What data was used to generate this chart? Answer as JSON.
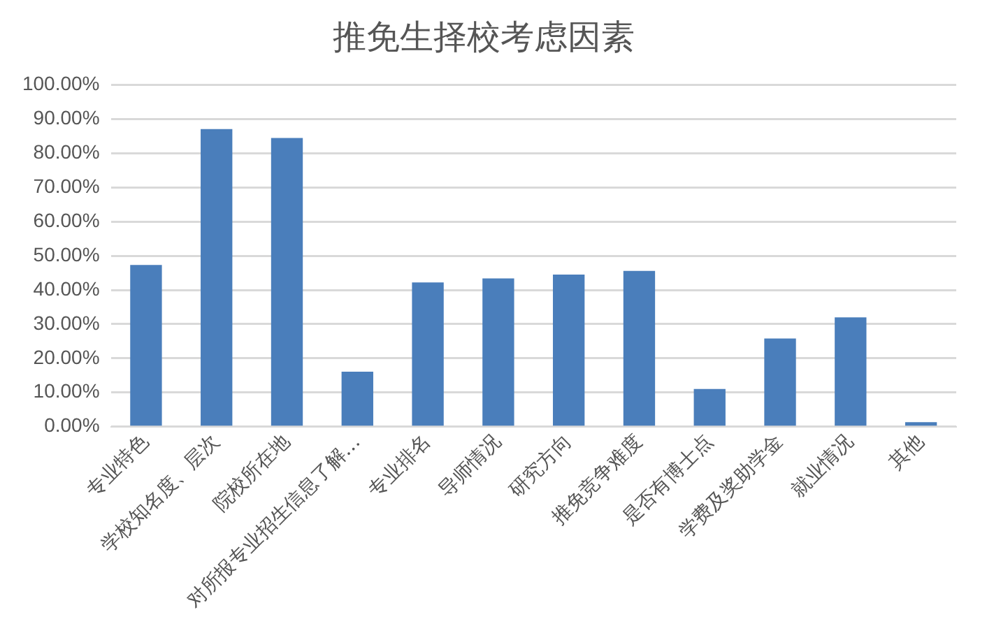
{
  "chart_data": {
    "type": "bar",
    "title": "推免生择校考虑因素",
    "categories": [
      "专业特色",
      "学校知名度、层次",
      "院校所在地",
      "对所报专业招生信息了解…",
      "专业排名",
      "导师情况",
      "研究方向",
      "推免竞争难度",
      "是否有博士点",
      "学费及奖助学金",
      "就业情况",
      "其他"
    ],
    "values": [
      47.3,
      87.1,
      84.5,
      16.1,
      42.2,
      43.4,
      44.5,
      45.6,
      11.0,
      25.8,
      32.0,
      1.3
    ],
    "color": "#4a7ebb",
    "ylim": [
      0,
      100
    ],
    "yticks": [
      {
        "value": 0,
        "label": "0.00%"
      },
      {
        "value": 10,
        "label": "10.00%"
      },
      {
        "value": 20,
        "label": "20.00%"
      },
      {
        "value": 30,
        "label": "30.00%"
      },
      {
        "value": 40,
        "label": "40.00%"
      },
      {
        "value": 50,
        "label": "50.00%"
      },
      {
        "value": 60,
        "label": "60.00%"
      },
      {
        "value": 70,
        "label": "70.00%"
      },
      {
        "value": 80,
        "label": "80.00%"
      },
      {
        "value": 90,
        "label": "90.00%"
      },
      {
        "value": 100,
        "label": "100.00%"
      }
    ],
    "grid": "y",
    "legend": false
  }
}
